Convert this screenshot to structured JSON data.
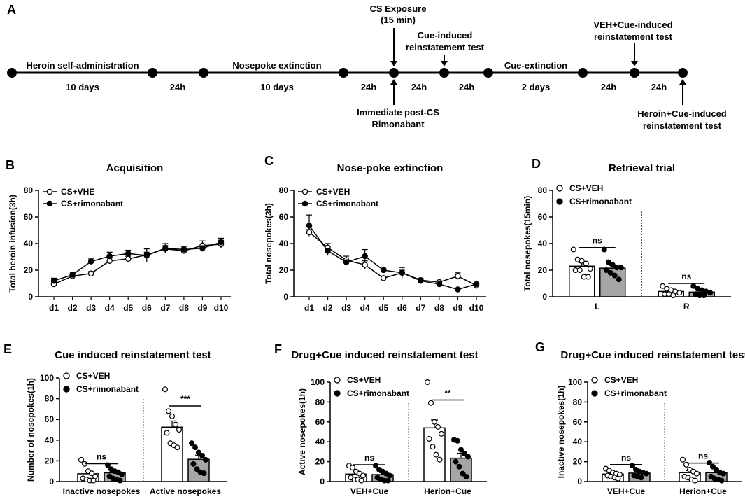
{
  "timeline": {
    "panel_label": "A",
    "steps": [
      {
        "top": "Heroin self-administration",
        "bottom": "10 days"
      },
      {
        "bottom": "24h"
      },
      {
        "top": "Nosepoke extinction",
        "bottom": "10 days"
      },
      {
        "bottom": "24h"
      },
      {
        "above": [
          "CS Exposure",
          "(15 min)"
        ],
        "below": [
          "Immediate post-CS",
          "Rimonabant"
        ]
      },
      {
        "bottom": "24h"
      },
      {
        "above": [
          "Cue-induced",
          "reinstatement test"
        ]
      },
      {
        "bottom": "24h"
      },
      {
        "top": "Cue-extinction",
        "bottom": "2 days"
      },
      {
        "bottom": "24h"
      },
      {
        "above": [
          "VEH+Cue-induced",
          "reinstatement test"
        ]
      },
      {
        "bottom": "24h"
      },
      {
        "below": [
          "Heroin+Cue-induced",
          "reinstatement test"
        ]
      }
    ]
  },
  "chart_data": [
    {
      "id": "B",
      "type": "line",
      "title": "Acquisition",
      "ylabel": "Total heroin infusion(3h)",
      "xlabel": "",
      "ylim": [
        0,
        80
      ],
      "yticks": [
        0,
        20,
        40,
        60,
        80
      ],
      "categories": [
        "d1",
        "d2",
        "d3",
        "d4",
        "d5",
        "d6",
        "d7",
        "d8",
        "d9",
        "d10"
      ],
      "series": [
        {
          "name": "CS+VHE",
          "marker": "open",
          "values": [
            9.5,
            15.5,
            17.5,
            27,
            28.5,
            31.5,
            36,
            34.5,
            38.5,
            39.5
          ],
          "err": [
            1.5,
            1.5,
            1.5,
            2,
            2,
            2,
            2.5,
            2,
            3.5,
            3
          ]
        },
        {
          "name": "CS+rimonabant",
          "marker": "filled",
          "values": [
            12,
            16.5,
            26.5,
            30.5,
            32.5,
            31,
            36.5,
            35.5,
            36.5,
            41
          ],
          "err": [
            2,
            2,
            2,
            3,
            2.5,
            5,
            3.5,
            2,
            2.5,
            3
          ]
        }
      ]
    },
    {
      "id": "C",
      "type": "line",
      "title": "Nose-poke extinction",
      "ylabel": "Total nosepokes(3h)",
      "xlabel": "",
      "ylim": [
        0,
        80
      ],
      "yticks": [
        0,
        20,
        40,
        60,
        80
      ],
      "categories": [
        "d1",
        "d2",
        "d3",
        "d4",
        "d5",
        "d6",
        "d7",
        "d8",
        "d9",
        "d10"
      ],
      "series": [
        {
          "name": "CS+VEH",
          "marker": "open",
          "values": [
            48.5,
            37,
            27.5,
            24,
            14,
            18,
            12.5,
            11,
            15.5,
            8.5
          ],
          "err": [
            2,
            3,
            3,
            3,
            1.5,
            2,
            1.5,
            1,
            2.5,
            2.5
          ]
        },
        {
          "name": "CS+rimonabant",
          "marker": "filled",
          "values": [
            53.5,
            34.5,
            26,
            30.5,
            20,
            18,
            12,
            9.5,
            5.5,
            9.5
          ],
          "err": [
            8,
            3.5,
            2,
            5,
            1.5,
            4,
            1,
            1,
            1,
            1.5
          ]
        }
      ]
    },
    {
      "id": "D",
      "type": "bar",
      "title": "Retrieval trial",
      "ylabel": "Total nosepokes(15min)",
      "xlabel": "",
      "ylim": [
        0,
        80
      ],
      "yticks": [
        0,
        20,
        40,
        60,
        80
      ],
      "categories": [
        "L",
        "R"
      ],
      "series": [
        {
          "name": "CS+VEH",
          "fill": "white",
          "values": [
            23,
            4
          ],
          "err": [
            2.5,
            1
          ],
          "points": [
            [
              35.5,
              28,
              27,
              25,
              21,
              20,
              20,
              15,
              15
            ],
            [
              8,
              6,
              5,
              4,
              3,
              2,
              2,
              1
            ]
          ]
        },
        {
          "name": "CS+rimonabant",
          "fill": "gray",
          "values": [
            21.5,
            3.5
          ],
          "err": [
            2,
            1
          ],
          "points": [
            [
              35.5,
              26,
              24,
              22,
              22,
              20,
              18,
              16,
              13
            ],
            [
              8,
              6,
              5,
              4,
              3,
              2,
              1,
              1
            ]
          ]
        }
      ],
      "annotations": [
        "ns",
        "ns"
      ]
    },
    {
      "id": "E",
      "type": "bar",
      "title": "Cue induced reinstatement test",
      "ylabel": "Number of nosepokes(1h)",
      "xlabel": "",
      "ylim": [
        0,
        100
      ],
      "yticks": [
        0,
        20,
        40,
        60,
        80,
        100
      ],
      "categories": [
        "Inactive nosepokes",
        "Active nosepokes"
      ],
      "series": [
        {
          "name": "CS+VEH",
          "fill": "white",
          "values": [
            7.5,
            52.5
          ],
          "err": [
            2.5,
            6
          ],
          "points": [
            [
              21,
              17,
              10,
              8,
              5,
              3,
              2,
              1,
              1
            ],
            [
              89,
              68,
              63,
              55,
              50,
              47,
              37,
              35,
              33
            ]
          ]
        },
        {
          "name": "CS+rimonabant",
          "fill": "gray",
          "values": [
            8.5,
            21.5
          ],
          "err": [
            2,
            4
          ],
          "points": [
            [
              16,
              12,
              10,
              9,
              7,
              5,
              3,
              2,
              1
            ],
            [
              37,
              33,
              28,
              25,
              21,
              17,
              12,
              9,
              8
            ]
          ]
        }
      ],
      "annotations": [
        "ns",
        "***"
      ]
    },
    {
      "id": "F",
      "type": "bar",
      "title": "Drug+Cue induced reinstatement test",
      "ylabel": "Active nosepokes(1h)",
      "xlabel": "",
      "ylim": [
        0,
        100
      ],
      "yticks": [
        0,
        20,
        40,
        60,
        80,
        100
      ],
      "categories": [
        "VEH+Cue",
        "Herion+Cue"
      ],
      "series": [
        {
          "name": "CS+VEH",
          "fill": "white",
          "values": [
            7.5,
            54
          ],
          "err": [
            2,
            8
          ],
          "points": [
            [
              16,
              14,
              10,
              8,
              6,
              4,
              2,
              2,
              1
            ],
            [
              100,
              79,
              60,
              55,
              48,
              43,
              35,
              27,
              22
            ]
          ]
        },
        {
          "name": "CS+rimonabant",
          "fill": "gray",
          "values": [
            7,
            23.5
          ],
          "err": [
            2,
            5
          ],
          "points": [
            [
              16,
              12,
              10,
              8,
              6,
              4,
              2,
              1,
              1
            ],
            [
              42,
              41,
              32,
              28,
              25,
              20,
              15,
              8,
              5
            ]
          ]
        }
      ],
      "annotations": [
        "ns",
        "**"
      ]
    },
    {
      "id": "G",
      "type": "bar",
      "title": "Drug+Cue induced reinstatement test",
      "ylabel": "Inactive nosepokes(1h)",
      "xlabel": "",
      "ylim": [
        0,
        100
      ],
      "yticks": [
        0,
        20,
        40,
        60,
        80,
        100
      ],
      "categories": [
        "VEH+Cue",
        "Herion+Cue"
      ],
      "series": [
        {
          "name": "CS+VEH",
          "fill": "white",
          "values": [
            7.5,
            9
          ],
          "err": [
            1,
            2
          ],
          "points": [
            [
              13,
              11,
              9,
              8,
              7,
              6,
              5,
              4,
              3
            ],
            [
              22,
              17,
              12,
              10,
              8,
              5,
              4,
              2,
              1
            ]
          ]
        },
        {
          "name": "CS+rimonabant",
          "fill": "gray",
          "values": [
            8.5,
            9
          ],
          "err": [
            1.5,
            2.5
          ],
          "points": [
            [
              16,
              12,
              10,
              9,
              8,
              6,
              5,
              4
            ],
            [
              19,
              15,
              12,
              9,
              8,
              5,
              3,
              2,
              1
            ]
          ]
        }
      ],
      "annotations": [
        "ns",
        "ns"
      ]
    }
  ]
}
